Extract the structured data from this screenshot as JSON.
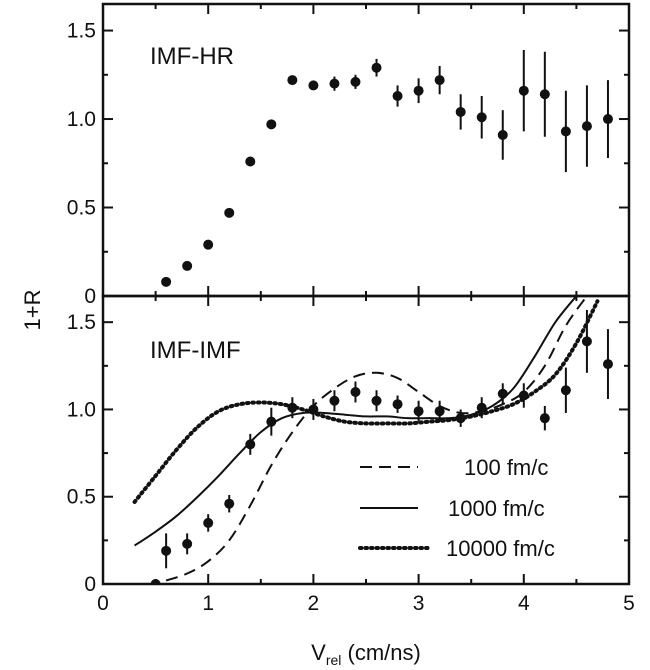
{
  "chart_data": [
    {
      "type": "scatter",
      "panel_label": "IMF-HR",
      "ylabel": "1+R",
      "xlabel_main": "V",
      "xlabel_sub": "rel",
      "xlabel_unit": " (cm/ns)",
      "xlim": [
        0,
        5
      ],
      "ylim": [
        0,
        1.65
      ],
      "x_ticks": [
        0,
        1,
        2,
        3,
        4,
        5
      ],
      "y_ticks": [
        0,
        0.5,
        1.0,
        1.5
      ],
      "y_tick_labels": [
        "0",
        "0.5",
        "1.0",
        "1.5"
      ],
      "points": [
        {
          "x": 0.6,
          "y": 0.08,
          "err": 0.01
        },
        {
          "x": 0.8,
          "y": 0.17,
          "err": 0.01
        },
        {
          "x": 1.0,
          "y": 0.29,
          "err": 0.015
        },
        {
          "x": 1.2,
          "y": 0.47,
          "err": 0.015
        },
        {
          "x": 1.4,
          "y": 0.76,
          "err": 0.02
        },
        {
          "x": 1.6,
          "y": 0.97,
          "err": 0.02
        },
        {
          "x": 1.8,
          "y": 1.22,
          "err": 0.03
        },
        {
          "x": 2.0,
          "y": 1.19,
          "err": 0.03
        },
        {
          "x": 2.2,
          "y": 1.2,
          "err": 0.04
        },
        {
          "x": 2.4,
          "y": 1.21,
          "err": 0.04
        },
        {
          "x": 2.6,
          "y": 1.29,
          "err": 0.05
        },
        {
          "x": 2.8,
          "y": 1.13,
          "err": 0.06
        },
        {
          "x": 3.0,
          "y": 1.16,
          "err": 0.07
        },
        {
          "x": 3.2,
          "y": 1.22,
          "err": 0.08
        },
        {
          "x": 3.4,
          "y": 1.04,
          "err": 0.1
        },
        {
          "x": 3.6,
          "y": 1.01,
          "err": 0.12
        },
        {
          "x": 3.8,
          "y": 0.91,
          "err": 0.14
        },
        {
          "x": 4.0,
          "y": 1.16,
          "err": 0.23
        },
        {
          "x": 4.2,
          "y": 1.14,
          "err": 0.24
        },
        {
          "x": 4.4,
          "y": 0.93,
          "err": 0.23
        },
        {
          "x": 4.6,
          "y": 0.96,
          "err": 0.23
        },
        {
          "x": 4.8,
          "y": 1.0,
          "err": 0.22
        }
      ]
    },
    {
      "type": "scatter+line",
      "panel_label": "IMF-IMF",
      "xlim": [
        0,
        5
      ],
      "ylim": [
        0,
        1.65
      ],
      "x_ticks": [
        0,
        1,
        2,
        3,
        4,
        5
      ],
      "x_tick_labels": [
        "0",
        "1",
        "2",
        "3",
        "4",
        "5"
      ],
      "y_ticks": [
        0,
        0.5,
        1.0,
        1.5
      ],
      "y_tick_labels": [
        "0",
        "0.5",
        "1.0",
        "1.5"
      ],
      "points": [
        {
          "x": 0.5,
          "y": 0.0,
          "err": 0.02
        },
        {
          "x": 0.6,
          "y": 0.19,
          "err": 0.1
        },
        {
          "x": 0.8,
          "y": 0.23,
          "err": 0.06
        },
        {
          "x": 1.0,
          "y": 0.35,
          "err": 0.05
        },
        {
          "x": 1.2,
          "y": 0.46,
          "err": 0.05
        },
        {
          "x": 1.4,
          "y": 0.8,
          "err": 0.06
        },
        {
          "x": 1.6,
          "y": 0.93,
          "err": 0.08
        },
        {
          "x": 1.8,
          "y": 1.01,
          "err": 0.06
        },
        {
          "x": 2.0,
          "y": 1.0,
          "err": 0.06
        },
        {
          "x": 2.2,
          "y": 1.05,
          "err": 0.06
        },
        {
          "x": 2.4,
          "y": 1.1,
          "err": 0.06
        },
        {
          "x": 2.6,
          "y": 1.05,
          "err": 0.06
        },
        {
          "x": 2.8,
          "y": 1.03,
          "err": 0.05
        },
        {
          "x": 3.0,
          "y": 0.99,
          "err": 0.06
        },
        {
          "x": 3.2,
          "y": 0.99,
          "err": 0.06
        },
        {
          "x": 3.4,
          "y": 0.95,
          "err": 0.05
        },
        {
          "x": 3.6,
          "y": 1.01,
          "err": 0.06
        },
        {
          "x": 3.8,
          "y": 1.09,
          "err": 0.06
        },
        {
          "x": 4.0,
          "y": 1.08,
          "err": 0.07
        },
        {
          "x": 4.2,
          "y": 0.95,
          "err": 0.07
        },
        {
          "x": 4.4,
          "y": 1.11,
          "err": 0.13
        },
        {
          "x": 4.6,
          "y": 1.39,
          "err": 0.18
        },
        {
          "x": 4.8,
          "y": 1.26,
          "err": 0.2
        }
      ],
      "series": [
        {
          "name": "100 fm/c",
          "style": "dashed",
          "x": [
            0.6,
            0.8,
            1.0,
            1.2,
            1.4,
            1.6,
            1.8,
            2.0,
            2.2,
            2.4,
            2.6,
            2.8,
            3.0,
            3.2,
            3.4,
            3.6,
            3.8,
            4.0,
            4.2,
            4.4,
            4.6
          ],
          "y": [
            0.02,
            0.06,
            0.13,
            0.25,
            0.45,
            0.68,
            0.87,
            1.02,
            1.12,
            1.19,
            1.21,
            1.18,
            1.1,
            1.02,
            0.98,
            0.99,
            1.03,
            1.1,
            1.25,
            1.48,
            1.65
          ]
        },
        {
          "name": "1000 fm/c",
          "style": "solid",
          "x": [
            0.3,
            0.5,
            0.7,
            0.9,
            1.1,
            1.3,
            1.5,
            1.7,
            1.9,
            2.1,
            2.3,
            2.5,
            2.7,
            2.9,
            3.1,
            3.3,
            3.5,
            3.7,
            3.9,
            4.1,
            4.3,
            4.5
          ],
          "y": [
            0.22,
            0.3,
            0.39,
            0.5,
            0.62,
            0.75,
            0.87,
            0.95,
            0.98,
            0.98,
            0.97,
            0.96,
            0.96,
            0.95,
            0.95,
            0.95,
            0.97,
            1.02,
            1.12,
            1.3,
            1.5,
            1.65
          ]
        },
        {
          "name": "10000 fm/c",
          "style": "dotted",
          "x": [
            0.3,
            0.5,
            0.7,
            0.9,
            1.1,
            1.3,
            1.5,
            1.7,
            1.9,
            2.1,
            2.3,
            2.5,
            2.7,
            2.9,
            3.1,
            3.3,
            3.5,
            3.7,
            3.9,
            4.1,
            4.3,
            4.5,
            4.7
          ],
          "y": [
            0.47,
            0.62,
            0.77,
            0.9,
            0.99,
            1.03,
            1.04,
            1.03,
            1.0,
            0.96,
            0.93,
            0.92,
            0.92,
            0.92,
            0.93,
            0.94,
            0.96,
            0.99,
            1.03,
            1.1,
            1.2,
            1.38,
            1.62
          ]
        }
      ],
      "legend": [
        "100 fm/c",
        "1000 fm/c",
        "10000 fm/c"
      ]
    }
  ]
}
